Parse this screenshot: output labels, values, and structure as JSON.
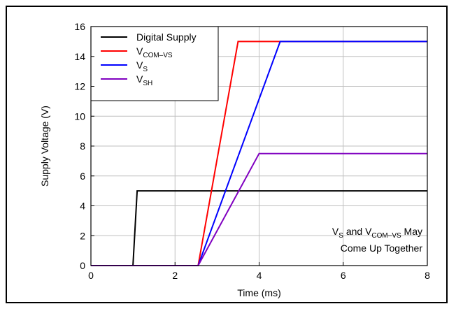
{
  "chart_data": {
    "type": "line",
    "title": "",
    "xlabel": "Time (ms)",
    "ylabel": "Supply Voltage (V)",
    "xlim": [
      0,
      8
    ],
    "ylim": [
      0,
      16
    ],
    "xticks": [
      0,
      2,
      4,
      6,
      8
    ],
    "yticks": [
      0,
      2,
      4,
      6,
      8,
      10,
      12,
      14,
      16
    ],
    "grid": true,
    "legend_position": "top-left",
    "series": [
      {
        "name": "Digital Supply",
        "name_main": "Digital Supply",
        "name_sub": "",
        "color": "#000000",
        "points": [
          [
            0,
            0
          ],
          [
            1.0,
            0
          ],
          [
            1.1,
            5
          ],
          [
            8,
            5
          ]
        ]
      },
      {
        "name": "VCOM–VS",
        "name_main": "V",
        "name_sub": "COM–VS",
        "color": "#ff0000",
        "points": [
          [
            0,
            0
          ],
          [
            2.55,
            0
          ],
          [
            3.5,
            15
          ],
          [
            8,
            15
          ]
        ]
      },
      {
        "name": "VS",
        "name_main": "V",
        "name_sub": "S",
        "color": "#0000ff",
        "points": [
          [
            0,
            0
          ],
          [
            2.55,
            0
          ],
          [
            4.5,
            15
          ],
          [
            8,
            15
          ]
        ]
      },
      {
        "name": "VSH",
        "name_main": "V",
        "name_sub": "SH",
        "color": "#8000c0",
        "points": [
          [
            0,
            0
          ],
          [
            2.55,
            0
          ],
          [
            4.0,
            7.5
          ],
          [
            8,
            7.5
          ]
        ]
      }
    ],
    "annotation": {
      "line1_parts": [
        {
          "text": "V",
          "sub": false
        },
        {
          "text": "S",
          "sub": true
        },
        {
          "text": " and V",
          "sub": false
        },
        {
          "text": "COM–VS",
          "sub": true
        },
        {
          "text": " May",
          "sub": false
        }
      ],
      "line2": "Come Up Together"
    }
  }
}
